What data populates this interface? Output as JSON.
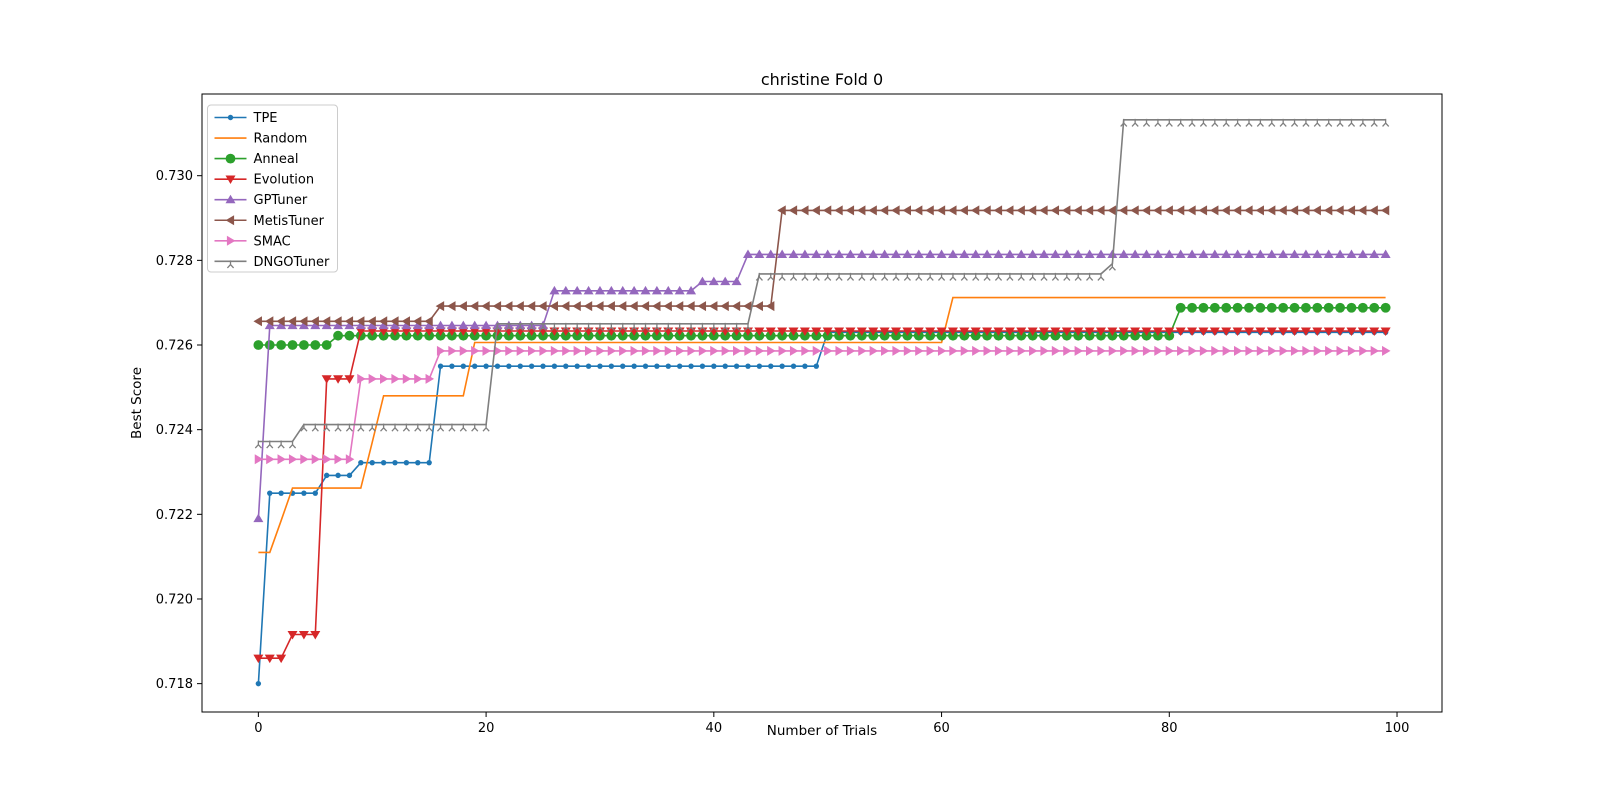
{
  "figure": {
    "background": "#ffffff",
    "spine_color": "#000000",
    "legend_border_color": "#cccccc"
  },
  "chart_data": {
    "type": "line",
    "title": "christine Fold 0",
    "xlabel": "Number of Trials",
    "ylabel": "Best Score",
    "grid": false,
    "legend_position": "upper left",
    "xlim": [
      -4.95,
      103.95
    ],
    "ylim": [
      0.71733,
      0.73193
    ],
    "x_ticks": [
      0,
      20,
      40,
      60,
      80,
      100
    ],
    "x_tick_labels": [
      "0",
      "20",
      "40",
      "60",
      "80",
      "100"
    ],
    "y_ticks": [
      0.718,
      0.72,
      0.722,
      0.724,
      0.726,
      0.728,
      0.73
    ],
    "y_tick_labels": [
      "0.718",
      "0.720",
      "0.722",
      "0.724",
      "0.726",
      "0.728",
      "0.730"
    ],
    "x_points_per_series": 100,
    "series": [
      {
        "name": "TPE",
        "color": "#1f77b4",
        "marker": "circle-small",
        "segments": [
          [
            0,
            0,
            0.718
          ],
          [
            1,
            5,
            0.7225
          ],
          [
            6,
            8,
            0.72292
          ],
          [
            9,
            15,
            0.72322
          ],
          [
            16,
            49,
            0.7255
          ],
          [
            50,
            99,
            0.7263
          ]
        ]
      },
      {
        "name": "Random",
        "color": "#ff7f0e",
        "marker": "none",
        "segments": [
          [
            0,
            1,
            0.7211
          ],
          [
            2,
            2,
            0.72185
          ],
          [
            3,
            9,
            0.72262
          ],
          [
            10,
            10,
            0.7237
          ],
          [
            11,
            18,
            0.7248
          ],
          [
            19,
            60,
            0.72606
          ],
          [
            61,
            99,
            0.72712
          ]
        ]
      },
      {
        "name": "Anneal",
        "color": "#2ca02c",
        "marker": "circle",
        "segments": [
          [
            0,
            6,
            0.726
          ],
          [
            7,
            80,
            0.72622
          ],
          [
            81,
            99,
            0.72688
          ]
        ]
      },
      {
        "name": "Evolution",
        "color": "#d62728",
        "marker": "triangle-down",
        "segments": [
          [
            0,
            2,
            0.7186
          ],
          [
            3,
            5,
            0.71916
          ],
          [
            6,
            8,
            0.7252
          ],
          [
            9,
            99,
            0.72633
          ]
        ]
      },
      {
        "name": "GPTuner",
        "color": "#9467bd",
        "marker": "triangle-up",
        "segments": [
          [
            0,
            0,
            0.7219
          ],
          [
            1,
            25,
            0.72646
          ],
          [
            26,
            38,
            0.72728
          ],
          [
            39,
            42,
            0.7275
          ],
          [
            43,
            99,
            0.72814
          ]
        ]
      },
      {
        "name": "MetisTuner",
        "color": "#8c564b",
        "marker": "triangle-left",
        "segments": [
          [
            0,
            15,
            0.72656
          ],
          [
            16,
            45,
            0.72692
          ],
          [
            46,
            99,
            0.72918
          ]
        ]
      },
      {
        "name": "SMAC",
        "color": "#e377c2",
        "marker": "triangle-right",
        "segments": [
          [
            0,
            8,
            0.7233
          ],
          [
            9,
            15,
            0.7252
          ],
          [
            16,
            99,
            0.72586
          ]
        ]
      },
      {
        "name": "DNGOTuner",
        "color": "#7f7f7f",
        "marker": "tick-down",
        "segments": [
          [
            0,
            3,
            0.72372
          ],
          [
            4,
            20,
            0.72412
          ],
          [
            21,
            43,
            0.7265
          ],
          [
            44,
            74,
            0.72768
          ],
          [
            75,
            75,
            0.72792
          ],
          [
            76,
            99,
            0.73132
          ]
        ]
      }
    ]
  }
}
